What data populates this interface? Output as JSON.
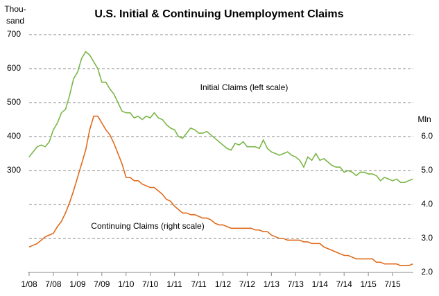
{
  "chart_data": {
    "type": "line",
    "title": "U.S. Initial & Continuing Unemployment Claims",
    "ylabel_lines": [
      "Thou-",
      "sand"
    ],
    "y2label": "Mln",
    "xlim": [
      0,
      96
    ],
    "xticks": [
      {
        "value": 0,
        "label": "1/08"
      },
      {
        "value": 6,
        "label": "7/08"
      },
      {
        "value": 12,
        "label": "1/09"
      },
      {
        "value": 18,
        "label": "7/09"
      },
      {
        "value": 24,
        "label": "1/10"
      },
      {
        "value": 30,
        "label": "7/10"
      },
      {
        "value": 36,
        "label": "1/11"
      },
      {
        "value": 42,
        "label": "7/11"
      },
      {
        "value": 48,
        "label": "1/12"
      },
      {
        "value": 54,
        "label": "7/12"
      },
      {
        "value": 60,
        "label": "1/13"
      },
      {
        "value": 66,
        "label": "7/13"
      },
      {
        "value": 72,
        "label": "1/14"
      },
      {
        "value": 78,
        "label": "7/14"
      },
      {
        "value": 84,
        "label": "1/15"
      },
      {
        "value": 90,
        "label": "7/15"
      }
    ],
    "ylim": [
      0,
      700
    ],
    "yticks": [
      300,
      400,
      500,
      600,
      700
    ],
    "y2lim": [
      2,
      9
    ],
    "y2ticks": [
      {
        "value": 2,
        "label": "2.0"
      },
      {
        "value": 3,
        "label": "3.0"
      },
      {
        "value": 4,
        "label": "4.0"
      },
      {
        "value": 5,
        "label": "5.0"
      },
      {
        "value": 6,
        "label": "6.0"
      }
    ],
    "grid": true,
    "x": [
      0,
      1,
      2,
      3,
      4,
      5,
      6,
      7,
      8,
      9,
      10,
      11,
      12,
      13,
      14,
      15,
      16,
      17,
      18,
      19,
      20,
      21,
      22,
      23,
      24,
      25,
      26,
      27,
      28,
      29,
      30,
      31,
      32,
      33,
      34,
      35,
      36,
      37,
      38,
      39,
      40,
      41,
      42,
      43,
      44,
      45,
      46,
      47,
      48,
      49,
      50,
      51,
      52,
      53,
      54,
      55,
      56,
      57,
      58,
      59,
      60,
      61,
      62,
      63,
      64,
      65,
      66,
      67,
      68,
      69,
      70,
      71,
      72,
      73,
      74,
      75,
      76,
      77,
      78,
      79,
      80,
      81,
      82,
      83,
      84,
      85,
      86,
      87,
      88,
      89,
      90,
      91,
      92,
      93,
      94,
      95
    ],
    "series": [
      {
        "name": "Initial Claims (left scale)",
        "color": "#7ab648",
        "axis": "y",
        "values": [
          340,
          355,
          370,
          375,
          370,
          385,
          420,
          440,
          470,
          480,
          520,
          570,
          590,
          630,
          650,
          640,
          620,
          600,
          560,
          560,
          540,
          525,
          500,
          475,
          470,
          470,
          455,
          460,
          450,
          460,
          455,
          470,
          455,
          450,
          435,
          425,
          420,
          400,
          395,
          410,
          425,
          420,
          410,
          410,
          415,
          405,
          395,
          385,
          375,
          365,
          360,
          380,
          375,
          385,
          370,
          370,
          370,
          365,
          390,
          365,
          355,
          350,
          345,
          350,
          355,
          345,
          340,
          330,
          310,
          340,
          330,
          350,
          330,
          335,
          325,
          315,
          310,
          310,
          295,
          300,
          295,
          285,
          295,
          295,
          290,
          290,
          285,
          270,
          280,
          275,
          270,
          275,
          265,
          265,
          270,
          275
        ]
      },
      {
        "name": "Continuing Claims (right scale)",
        "color": "#e06a1b",
        "axis": "y2",
        "values": [
          2.75,
          2.8,
          2.85,
          2.95,
          3.05,
          3.1,
          3.15,
          3.35,
          3.5,
          3.75,
          4.05,
          4.4,
          4.8,
          5.2,
          5.6,
          6.2,
          6.6,
          6.6,
          6.4,
          6.2,
          6.05,
          5.8,
          5.5,
          5.2,
          4.8,
          4.8,
          4.7,
          4.7,
          4.6,
          4.55,
          4.5,
          4.5,
          4.4,
          4.3,
          4.15,
          4.1,
          3.95,
          3.85,
          3.75,
          3.75,
          3.7,
          3.7,
          3.65,
          3.6,
          3.6,
          3.55,
          3.45,
          3.4,
          3.4,
          3.35,
          3.3,
          3.3,
          3.3,
          3.3,
          3.3,
          3.3,
          3.25,
          3.25,
          3.2,
          3.2,
          3.1,
          3.05,
          3.0,
          3.0,
          2.95,
          2.95,
          2.95,
          2.95,
          2.9,
          2.9,
          2.85,
          2.85,
          2.85,
          2.75,
          2.7,
          2.65,
          2.6,
          2.55,
          2.5,
          2.5,
          2.45,
          2.4,
          2.4,
          2.4,
          2.4,
          2.4,
          2.3,
          2.3,
          2.25,
          2.25,
          2.25,
          2.25,
          2.2,
          2.2,
          2.2,
          2.25
        ]
      }
    ]
  }
}
